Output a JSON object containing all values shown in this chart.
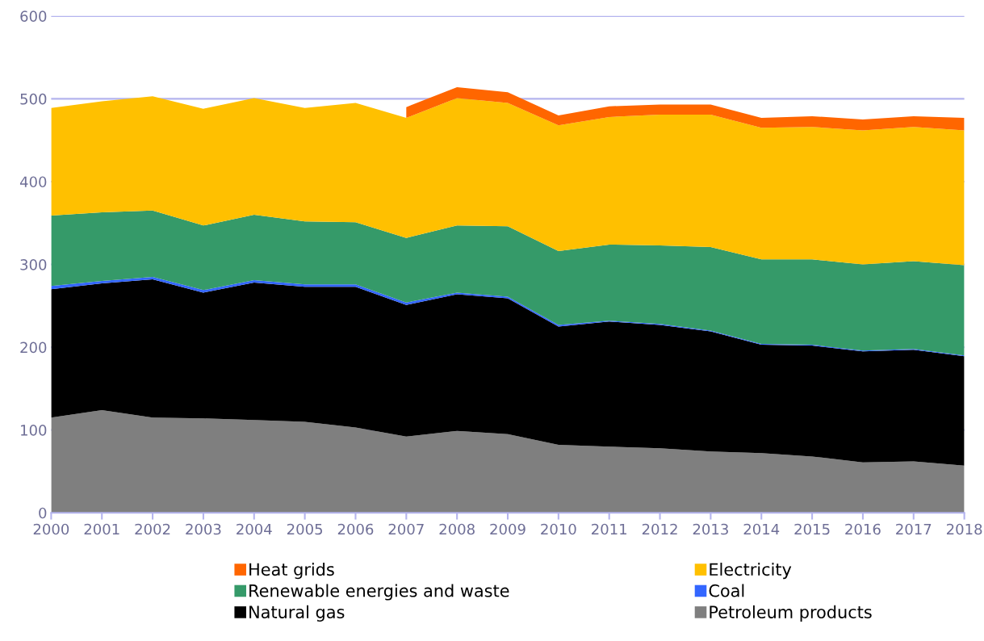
{
  "chart_data": {
    "type": "area",
    "stacked": true,
    "categories": [
      "2000",
      "2001",
      "2002",
      "2003",
      "2004",
      "2005",
      "2006",
      "2007",
      "2008",
      "2009",
      "2010",
      "2011",
      "2012",
      "2013",
      "2014",
      "2015",
      "2016",
      "2017",
      "2018"
    ],
    "series": [
      {
        "name": "Petroleum products",
        "color": "#7f7f7f",
        "values": [
          115,
          124,
          115,
          114,
          112,
          110,
          103,
          92,
          99,
          95,
          82,
          80,
          78,
          74,
          72,
          68,
          61,
          62,
          57
        ]
      },
      {
        "name": "Natural gas",
        "color": "#000000",
        "values": [
          155,
          153,
          167,
          152,
          166,
          163,
          170,
          159,
          165,
          164,
          143,
          151,
          149,
          145,
          131,
          134,
          134,
          135,
          132
        ]
      },
      {
        "name": "Coal",
        "color": "#3366ff",
        "values": [
          4,
          3,
          3,
          3,
          3,
          3,
          3,
          3,
          2,
          2,
          2,
          1,
          1,
          1,
          1,
          1,
          1,
          1,
          1
        ]
      },
      {
        "name": "Renewable energies and waste",
        "color": "#359a69",
        "values": [
          85,
          83,
          80,
          78,
          79,
          76,
          75,
          78,
          81,
          85,
          89,
          92,
          95,
          101,
          102,
          103,
          104,
          106,
          109
        ]
      },
      {
        "name": "Electricity",
        "color": "#ffc000",
        "values": [
          130,
          134,
          138,
          141,
          141,
          137,
          144,
          145,
          154,
          149,
          152,
          154,
          158,
          160,
          159,
          160,
          162,
          162,
          163
        ]
      },
      {
        "name": "Heat grids",
        "color": "#ff6600",
        "values": [
          null,
          null,
          null,
          null,
          null,
          null,
          null,
          13,
          13,
          13,
          12,
          13,
          12,
          12,
          12,
          13,
          13,
          13,
          15
        ]
      }
    ],
    "ylim": [
      0,
      600
    ],
    "yticks": [
      0,
      100,
      200,
      300,
      400,
      500,
      600
    ],
    "grid": "y",
    "legend": "bottom"
  }
}
